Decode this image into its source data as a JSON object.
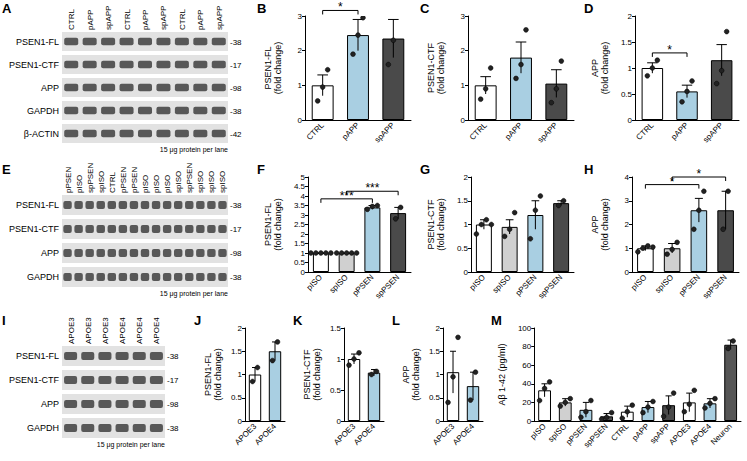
{
  "chart_data": [
    {
      "type": "bar",
      "panel": "B",
      "y_label": "PSEN1-FL\n(fold change)",
      "categories": [
        "CTRL",
        "pAPP",
        "spAPP"
      ],
      "values": [
        1.0,
        2.45,
        2.35
      ],
      "errors": [
        0.3,
        0.45,
        0.55
      ],
      "points": [
        [
          0.55,
          0.95,
          1.45
        ],
        [
          1.9,
          2.45,
          2.95
        ],
        [
          1.6,
          2.3,
          3.1
        ]
      ],
      "colors": [
        "#ffffff",
        "#a9cfe2",
        "#4a4a4a"
      ],
      "ylim": [
        0,
        3
      ],
      "yticks": [
        0,
        1,
        2,
        3
      ],
      "significance": [
        {
          "from": "CTRL",
          "to": "pAPP",
          "label": "*"
        }
      ]
    },
    {
      "type": "bar",
      "panel": "C",
      "y_label": "PSEN1-CTF\n(fold change)",
      "categories": [
        "CTRL",
        "pAPP",
        "spAPP"
      ],
      "values": [
        1.0,
        1.8,
        1.05
      ],
      "errors": [
        0.25,
        0.45,
        0.4
      ],
      "points": [
        [
          0.6,
          0.9,
          1.5
        ],
        [
          1.2,
          1.6,
          2.6
        ],
        [
          0.5,
          0.9,
          1.7
        ]
      ],
      "colors": [
        "#ffffff",
        "#a9cfe2",
        "#4a4a4a"
      ],
      "ylim": [
        0,
        3
      ],
      "yticks": [
        0,
        1,
        2,
        3
      ],
      "significance": []
    },
    {
      "type": "bar",
      "panel": "D",
      "y_label": "APP\n(fold change)",
      "categories": [
        "CTRL",
        "pAPP",
        "spAPP"
      ],
      "values": [
        1.0,
        0.55,
        1.15
      ],
      "errors": [
        0.1,
        0.12,
        0.3
      ],
      "points": [
        [
          0.85,
          1.0,
          1.15
        ],
        [
          0.35,
          0.55,
          0.75
        ],
        [
          0.7,
          0.95,
          1.7
        ]
      ],
      "colors": [
        "#ffffff",
        "#a9cfe2",
        "#4a4a4a"
      ],
      "ylim": [
        0,
        2
      ],
      "yticks": [
        0,
        0.5,
        1,
        1.5,
        2
      ],
      "significance": [
        {
          "from": "CTRL",
          "to": "pAPP",
          "label": "*"
        }
      ]
    },
    {
      "type": "bar",
      "panel": "F",
      "y_label": "PSEN1-FL\n(fold change)",
      "categories": [
        "pISO",
        "spISO",
        "pPSEN",
        "spPSEN"
      ],
      "values": [
        1.0,
        1.0,
        3.4,
        3.1
      ],
      "errors": [
        0,
        0,
        0.1,
        0.3
      ],
      "points": [
        [
          1,
          1,
          1,
          1,
          1
        ],
        [
          1,
          1,
          1,
          1,
          1
        ],
        [
          3.3,
          3.45,
          3.5
        ],
        [
          2.8,
          3.4
        ]
      ],
      "colors": [
        "#ffffff",
        "#d0d0d0",
        "#a9cfe2",
        "#4a4a4a"
      ],
      "ylim": [
        0,
        5
      ],
      "yticks": [
        0,
        0.5,
        1,
        1.5,
        2,
        2.5,
        3,
        3.5,
        4,
        4.5,
        5
      ],
      "significance": [
        {
          "from": "pISO",
          "to": "pPSEN",
          "label": "***"
        },
        {
          "from": "spISO",
          "to": "spPSEN",
          "label": "***"
        }
      ]
    },
    {
      "type": "bar",
      "panel": "G",
      "y_label": "PSEN1-CTF\n(fold change)",
      "categories": [
        "pISO",
        "spISO",
        "pPSEN",
        "spPSEN"
      ],
      "values": [
        1.0,
        0.95,
        1.2,
        1.45
      ],
      "errors": [
        0.1,
        0.15,
        0.3,
        0.05
      ],
      "points": [
        [
          0.8,
          1.0,
          1.1,
          1.0
        ],
        [
          0.75,
          0.9,
          1.25
        ],
        [
          0.7,
          1.3,
          1.6
        ],
        [
          1.4,
          1.5
        ]
      ],
      "colors": [
        "#ffffff",
        "#d0d0d0",
        "#a9cfe2",
        "#4a4a4a"
      ],
      "ylim": [
        0,
        2
      ],
      "yticks": [
        0,
        0.5,
        1,
        1.5,
        2
      ],
      "significance": []
    },
    {
      "type": "bar",
      "panel": "H",
      "y_label": "APP\n(fold change)",
      "categories": [
        "pISO",
        "spISO",
        "pPSEN",
        "spPSEN"
      ],
      "values": [
        1.0,
        1.0,
        2.6,
        2.6
      ],
      "errors": [
        0.1,
        0.2,
        0.5,
        0.8
      ],
      "points": [
        [
          0.85,
          1.0,
          1.1,
          1.05
        ],
        [
          0.75,
          0.95,
          1.25
        ],
        [
          1.8,
          2.6,
          3.4
        ],
        [
          1.8,
          3.4
        ]
      ],
      "colors": [
        "#ffffff",
        "#d0d0d0",
        "#a9cfe2",
        "#4a4a4a"
      ],
      "ylim": [
        0,
        4
      ],
      "yticks": [
        0,
        1,
        2,
        3,
        4
      ],
      "significance": [
        {
          "from": "pISO",
          "to": "pPSEN",
          "label": "*"
        },
        {
          "from": "spISO",
          "to": "spPSEN",
          "label": "*"
        }
      ]
    },
    {
      "type": "bar",
      "panel": "J",
      "y_label": "PSEN1-FL\n(fold change)",
      "categories": [
        "APOE3",
        "APOE4"
      ],
      "values": [
        1.0,
        1.5
      ],
      "errors": [
        0.15,
        0.2
      ],
      "points": [
        [
          0.85,
          1.15
        ],
        [
          1.3,
          1.7
        ]
      ],
      "colors": [
        "#ffffff",
        "#a9cfe2"
      ],
      "ylim": [
        0,
        2
      ],
      "yticks": [
        0,
        0.5,
        1,
        1.5,
        2
      ],
      "significance": []
    },
    {
      "type": "bar",
      "panel": "K",
      "y_label": "PSEN1-CTF\n(fold change)",
      "categories": [
        "APOE3",
        "APOE4"
      ],
      "values": [
        1.0,
        0.78
      ],
      "errors": [
        0.08,
        0.05
      ],
      "points": [
        [
          0.9,
          1.0,
          1.1
        ],
        [
          0.75,
          0.8
        ]
      ],
      "colors": [
        "#ffffff",
        "#a9cfe2"
      ],
      "ylim": [
        0,
        1.5
      ],
      "yticks": [
        0,
        0.5,
        1,
        1.5
      ],
      "significance": []
    },
    {
      "type": "bar",
      "panel": "L",
      "y_label": "APP\n(fold change)",
      "categories": [
        "APOE3",
        "APOE4"
      ],
      "values": [
        1.05,
        0.75
      ],
      "errors": [
        0.45,
        0.3
      ],
      "points": [
        [
          0.4,
          0.95,
          1.8
        ],
        [
          0.45,
          1.05
        ]
      ],
      "colors": [
        "#ffffff",
        "#a9cfe2"
      ],
      "ylim": [
        0,
        2
      ],
      "yticks": [
        0,
        0.5,
        1,
        1.5,
        2
      ],
      "significance": []
    },
    {
      "type": "bar",
      "panel": "M",
      "y_label": "Aβ 1-42 (pg/ml)",
      "categories": [
        "pISO",
        "spISO",
        "pPSEN",
        "spPSEN",
        "CTRL",
        "pAPP",
        "spAPP",
        "APOE3",
        "APOE4",
        "Neuron"
      ],
      "values": [
        33,
        20,
        12,
        5,
        10,
        15,
        17,
        20,
        19,
        82
      ],
      "errors": [
        7,
        4,
        8,
        3,
        6,
        6,
        10,
        10,
        5,
        5
      ],
      "points": [
        [
          22,
          35,
          42
        ],
        [
          16,
          20,
          24
        ],
        [
          4,
          10,
          22
        ],
        [
          2,
          4,
          9
        ],
        [
          3,
          10,
          17
        ],
        [
          9,
          15,
          21
        ],
        [
          5,
          15,
          30
        ],
        [
          10,
          18,
          33
        ],
        [
          14,
          19,
          24
        ],
        [
          78,
          86
        ]
      ],
      "colors": [
        "#ffffff",
        "#d0d0d0",
        "#a9cfe2",
        "#4a4a4a",
        "#ffffff",
        "#a9cfe2",
        "#4a4a4a",
        "#ffffff",
        "#a9cfe2",
        "#555555"
      ],
      "ylim": [
        0,
        100
      ],
      "yticks": [
        0,
        20,
        40,
        60,
        80,
        100
      ],
      "significance": []
    }
  ],
  "blots": [
    {
      "panel": "A",
      "lanes": [
        "CTRL",
        "pAPP",
        "spAPP",
        "CTRL",
        "pAPP",
        "spAPP",
        "CTRL",
        "pAPP",
        "spAPP"
      ],
      "rows": [
        {
          "label": "PSEN1-FL",
          "mw": "-38"
        },
        {
          "label": "PSEN1-CTF",
          "mw": "-17"
        },
        {
          "label": "APP",
          "mw": "-98"
        },
        {
          "label": "GAPDH",
          "mw": "-38"
        },
        {
          "label": "β-ACTIN",
          "mw": "-42"
        }
      ],
      "caption": "15 μg protein per lane"
    },
    {
      "panel": "E",
      "lanes": [
        "pPSEN",
        "pISO",
        "spPSEN",
        "spISO",
        "CTRL",
        "pPSEN",
        "pPSEN",
        "pISO",
        "pISO",
        "pISO",
        "spISO",
        "spPSEN",
        "spISO",
        "spISO",
        "spISO"
      ],
      "rows": [
        {
          "label": "PSEN1-FL",
          "mw": "-38"
        },
        {
          "label": "PSEN1-CTF",
          "mw": "-17"
        },
        {
          "label": "APP",
          "mw": "-98"
        },
        {
          "label": "GAPDH",
          "mw": "-38"
        }
      ],
      "caption": "15 μg protein per lane"
    },
    {
      "panel": "I",
      "lanes": [
        "APOE3",
        "APOE3",
        "APOE3",
        "APOE4",
        "APOE4",
        "APOE4"
      ],
      "rows": [
        {
          "label": "PSEN1-FL",
          "mw": "-38"
        },
        {
          "label": "PSEN1-CTF",
          "mw": "-17"
        },
        {
          "label": "APP",
          "mw": "-98"
        },
        {
          "label": "GAPDH",
          "mw": "-38"
        }
      ],
      "caption": "15 μg protein per lane"
    }
  ]
}
